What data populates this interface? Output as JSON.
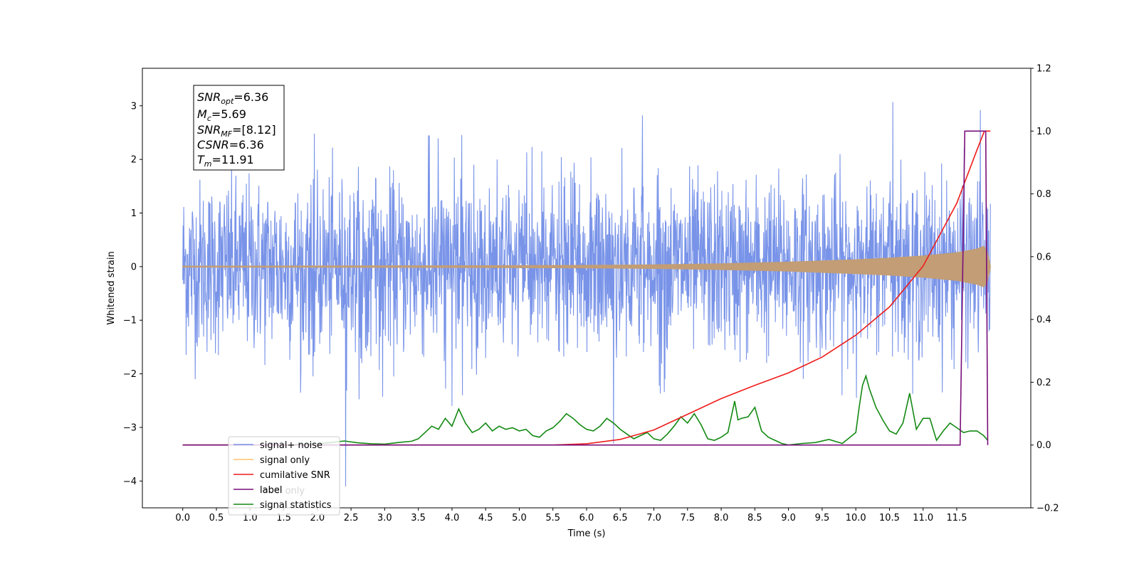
{
  "chart_data": {
    "type": "line",
    "xlabel": "Time (s)",
    "ylabel": "Whitened strain",
    "xlim": [
      -0.6,
      12.6
    ],
    "ylim": [
      -4.5,
      3.7
    ],
    "ylim_right": [
      -0.2,
      1.2
    ],
    "x_ticks": [
      "0.0",
      "0.5",
      "1.0",
      "1.5",
      "2.0",
      "2.5",
      "3.0",
      "3.5",
      "4.0",
      "4.5",
      "5.0",
      "5.5",
      "6.0",
      "6.5",
      "7.0",
      "7.5",
      "8.0",
      "8.5",
      "9.0",
      "9.5",
      "10.0",
      "10.5",
      "11.0",
      "11.5"
    ],
    "y_ticks_left": [
      "3",
      "2",
      "1",
      "0",
      "−1",
      "−2",
      "−3",
      "−4"
    ],
    "y_ticks_right": [
      "1.2",
      "1.0",
      "0.8",
      "0.6",
      "0.4",
      "0.2",
      "0.0",
      "−0.2"
    ],
    "colors": {
      "noise": "#7893e8",
      "signal": "#c29d75",
      "cumulative": "#ee1c1c",
      "label": "#7a0f7a",
      "statistics": "#138913"
    },
    "annotation": {
      "snr_opt": "=6.36",
      "mc": "=5.69",
      "snr_mf": "=[8.12]",
      "csnr": "=6.36",
      "tm": "=11.91"
    },
    "noise_params": {
      "t_start": 0.0,
      "t_end": 12.0,
      "sigma": 0.8,
      "spikes": [
        {
          "x": 2.42,
          "y": -4.1
        },
        {
          "x": 10.55,
          "y": 3.07
        },
        {
          "x": 6.83,
          "y": 2.82
        },
        {
          "x": 11.85,
          "y": 2.92
        },
        {
          "x": 6.4,
          "y": -3.3
        },
        {
          "x": 3.65,
          "y": 2.45
        },
        {
          "x": 4.0,
          "y": -2.6
        }
      ]
    },
    "signal_envelope": [
      [
        0.0,
        0.01
      ],
      [
        2.0,
        0.012
      ],
      [
        4.0,
        0.016
      ],
      [
        6.0,
        0.025
      ],
      [
        7.0,
        0.035
      ],
      [
        8.0,
        0.055
      ],
      [
        9.0,
        0.085
      ],
      [
        10.0,
        0.13
      ],
      [
        10.5,
        0.16
      ],
      [
        11.0,
        0.2
      ],
      [
        11.5,
        0.26
      ],
      [
        11.8,
        0.33
      ],
      [
        11.9,
        0.38
      ],
      [
        11.95,
        0.3
      ],
      [
        12.0,
        0.02
      ]
    ],
    "series": [
      {
        "name": "cumilative SNR",
        "axis": "right",
        "x": [
          0.0,
          5.0,
          5.5,
          6.0,
          6.5,
          7.0,
          7.5,
          8.0,
          8.5,
          9.0,
          9.5,
          10.0,
          10.5,
          11.0,
          11.5,
          11.8,
          11.91,
          12.0
        ],
        "y": [
          0.0,
          0.0,
          0.0,
          0.004,
          0.018,
          0.048,
          0.098,
          0.148,
          0.19,
          0.23,
          0.28,
          0.35,
          0.44,
          0.57,
          0.77,
          0.94,
          1.0,
          1.0
        ]
      },
      {
        "name": "label",
        "axis": "right",
        "x": [
          0.0,
          11.55,
          11.62,
          11.93,
          11.96
        ],
        "y": [
          0.0,
          0.0,
          1.0,
          1.0,
          0.0
        ]
      },
      {
        "name": "signal statistics",
        "axis": "right",
        "x": [
          0.0,
          1.0,
          1.5,
          2.0,
          2.2,
          2.4,
          2.6,
          2.8,
          3.0,
          3.2,
          3.4,
          3.5,
          3.6,
          3.7,
          3.8,
          3.9,
          4.0,
          4.1,
          4.2,
          4.3,
          4.4,
          4.5,
          4.6,
          4.7,
          4.8,
          4.9,
          5.0,
          5.1,
          5.2,
          5.3,
          5.4,
          5.5,
          5.6,
          5.7,
          5.8,
          5.9,
          6.0,
          6.1,
          6.2,
          6.3,
          6.4,
          6.5,
          6.6,
          6.7,
          6.8,
          6.9,
          7.0,
          7.1,
          7.2,
          7.3,
          7.4,
          7.5,
          7.6,
          7.7,
          7.8,
          7.9,
          8.0,
          8.1,
          8.2,
          8.25,
          8.3,
          8.4,
          8.5,
          8.6,
          8.7,
          8.8,
          8.9,
          9.0,
          9.2,
          9.4,
          9.6,
          9.8,
          10.0,
          10.05,
          10.1,
          10.15,
          10.2,
          10.3,
          10.4,
          10.5,
          10.6,
          10.7,
          10.8,
          10.9,
          11.0,
          11.1,
          11.2,
          11.3,
          11.4,
          11.5,
          11.6,
          11.7,
          11.8,
          11.9,
          11.96
        ],
        "y": [
          0.0,
          0.0,
          0.0,
          0.004,
          0.008,
          0.013,
          0.007,
          0.004,
          0.003,
          0.008,
          0.012,
          0.02,
          0.04,
          0.06,
          0.05,
          0.085,
          0.06,
          0.115,
          0.07,
          0.04,
          0.05,
          0.07,
          0.045,
          0.06,
          0.05,
          0.055,
          0.045,
          0.05,
          0.03,
          0.025,
          0.045,
          0.055,
          0.075,
          0.1,
          0.085,
          0.065,
          0.05,
          0.045,
          0.06,
          0.085,
          0.07,
          0.05,
          0.035,
          0.02,
          0.03,
          0.04,
          0.02,
          0.015,
          0.035,
          0.06,
          0.09,
          0.07,
          0.1,
          0.065,
          0.02,
          0.015,
          0.025,
          0.04,
          0.14,
          0.08,
          0.085,
          0.09,
          0.12,
          0.045,
          0.025,
          0.015,
          0.005,
          0.0,
          0.005,
          0.008,
          0.018,
          0.005,
          0.04,
          0.12,
          0.19,
          0.22,
          0.18,
          0.12,
          0.08,
          0.045,
          0.035,
          0.07,
          0.165,
          0.05,
          0.085,
          0.085,
          0.015,
          0.045,
          0.07,
          0.055,
          0.04,
          0.045,
          0.045,
          0.03,
          0.015
        ]
      }
    ],
    "legend": {
      "placement": "lower-left",
      "entries": [
        {
          "label": "signal+ noise",
          "color": "#7893e8"
        },
        {
          "label": "signal only",
          "color": "#ffc46b"
        },
        {
          "label": "cumilative SNR",
          "color": "#ee1c1c"
        },
        {
          "label": "label",
          "color": "#7a0f7a"
        },
        {
          "label": "label only",
          "color": "#d6d6d6"
        },
        {
          "label": "signal statistics",
          "color": "#138913"
        }
      ]
    }
  }
}
